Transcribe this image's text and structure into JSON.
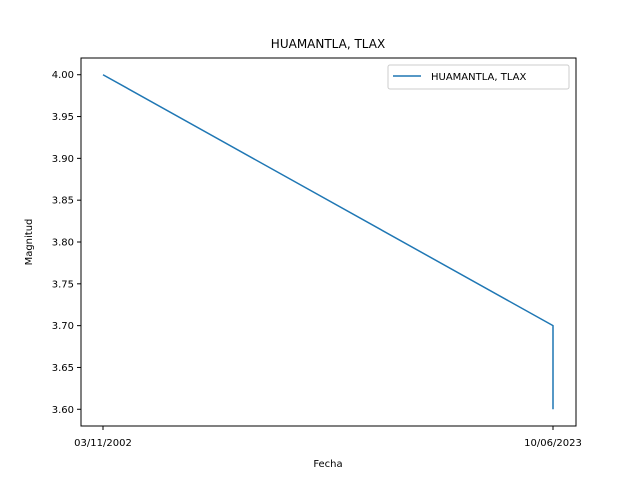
{
  "chart_data": {
    "type": "line",
    "title": "HUAMANTLA, TLAX",
    "xlabel": "Fecha",
    "ylabel": "Magnitud",
    "x_categories": [
      "03/11/2002",
      "10/06/2023",
      "10/06/2023"
    ],
    "x_ticks": [
      "03/11/2002",
      "10/06/2023"
    ],
    "series": [
      {
        "name": "HUAMANTLA, TLAX",
        "color": "#1f77b4",
        "values": [
          4.0,
          3.7,
          3.6
        ]
      }
    ],
    "y_ticks": [
      "3.60",
      "3.65",
      "3.70",
      "3.75",
      "3.80",
      "3.85",
      "3.90",
      "3.95",
      "4.00"
    ],
    "ylim": [
      3.58,
      4.02
    ],
    "grid": false,
    "legend_position": "top-right"
  }
}
